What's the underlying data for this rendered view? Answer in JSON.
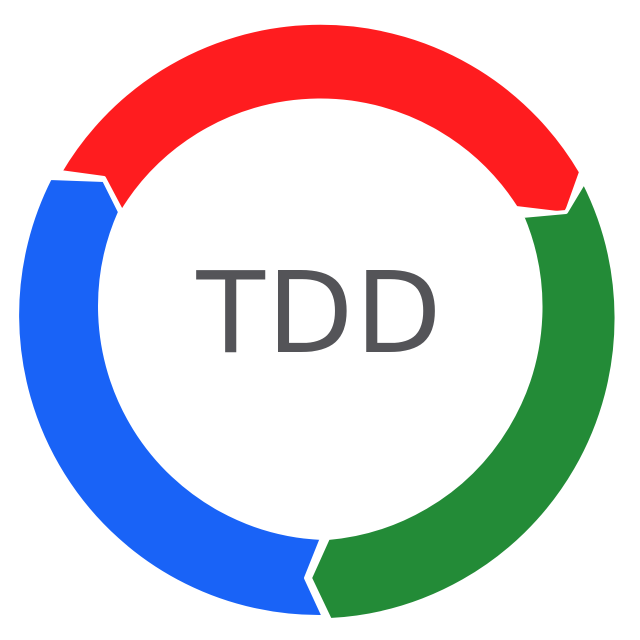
{
  "center": {
    "label": "TDD"
  },
  "cycle": {
    "segments": [
      {
        "name": "red",
        "color": "#ff1c1f"
      },
      {
        "name": "green",
        "color": "#238b37"
      },
      {
        "name": "blue",
        "color": "#1963f7"
      }
    ],
    "arrow_direction": "clockwise"
  }
}
